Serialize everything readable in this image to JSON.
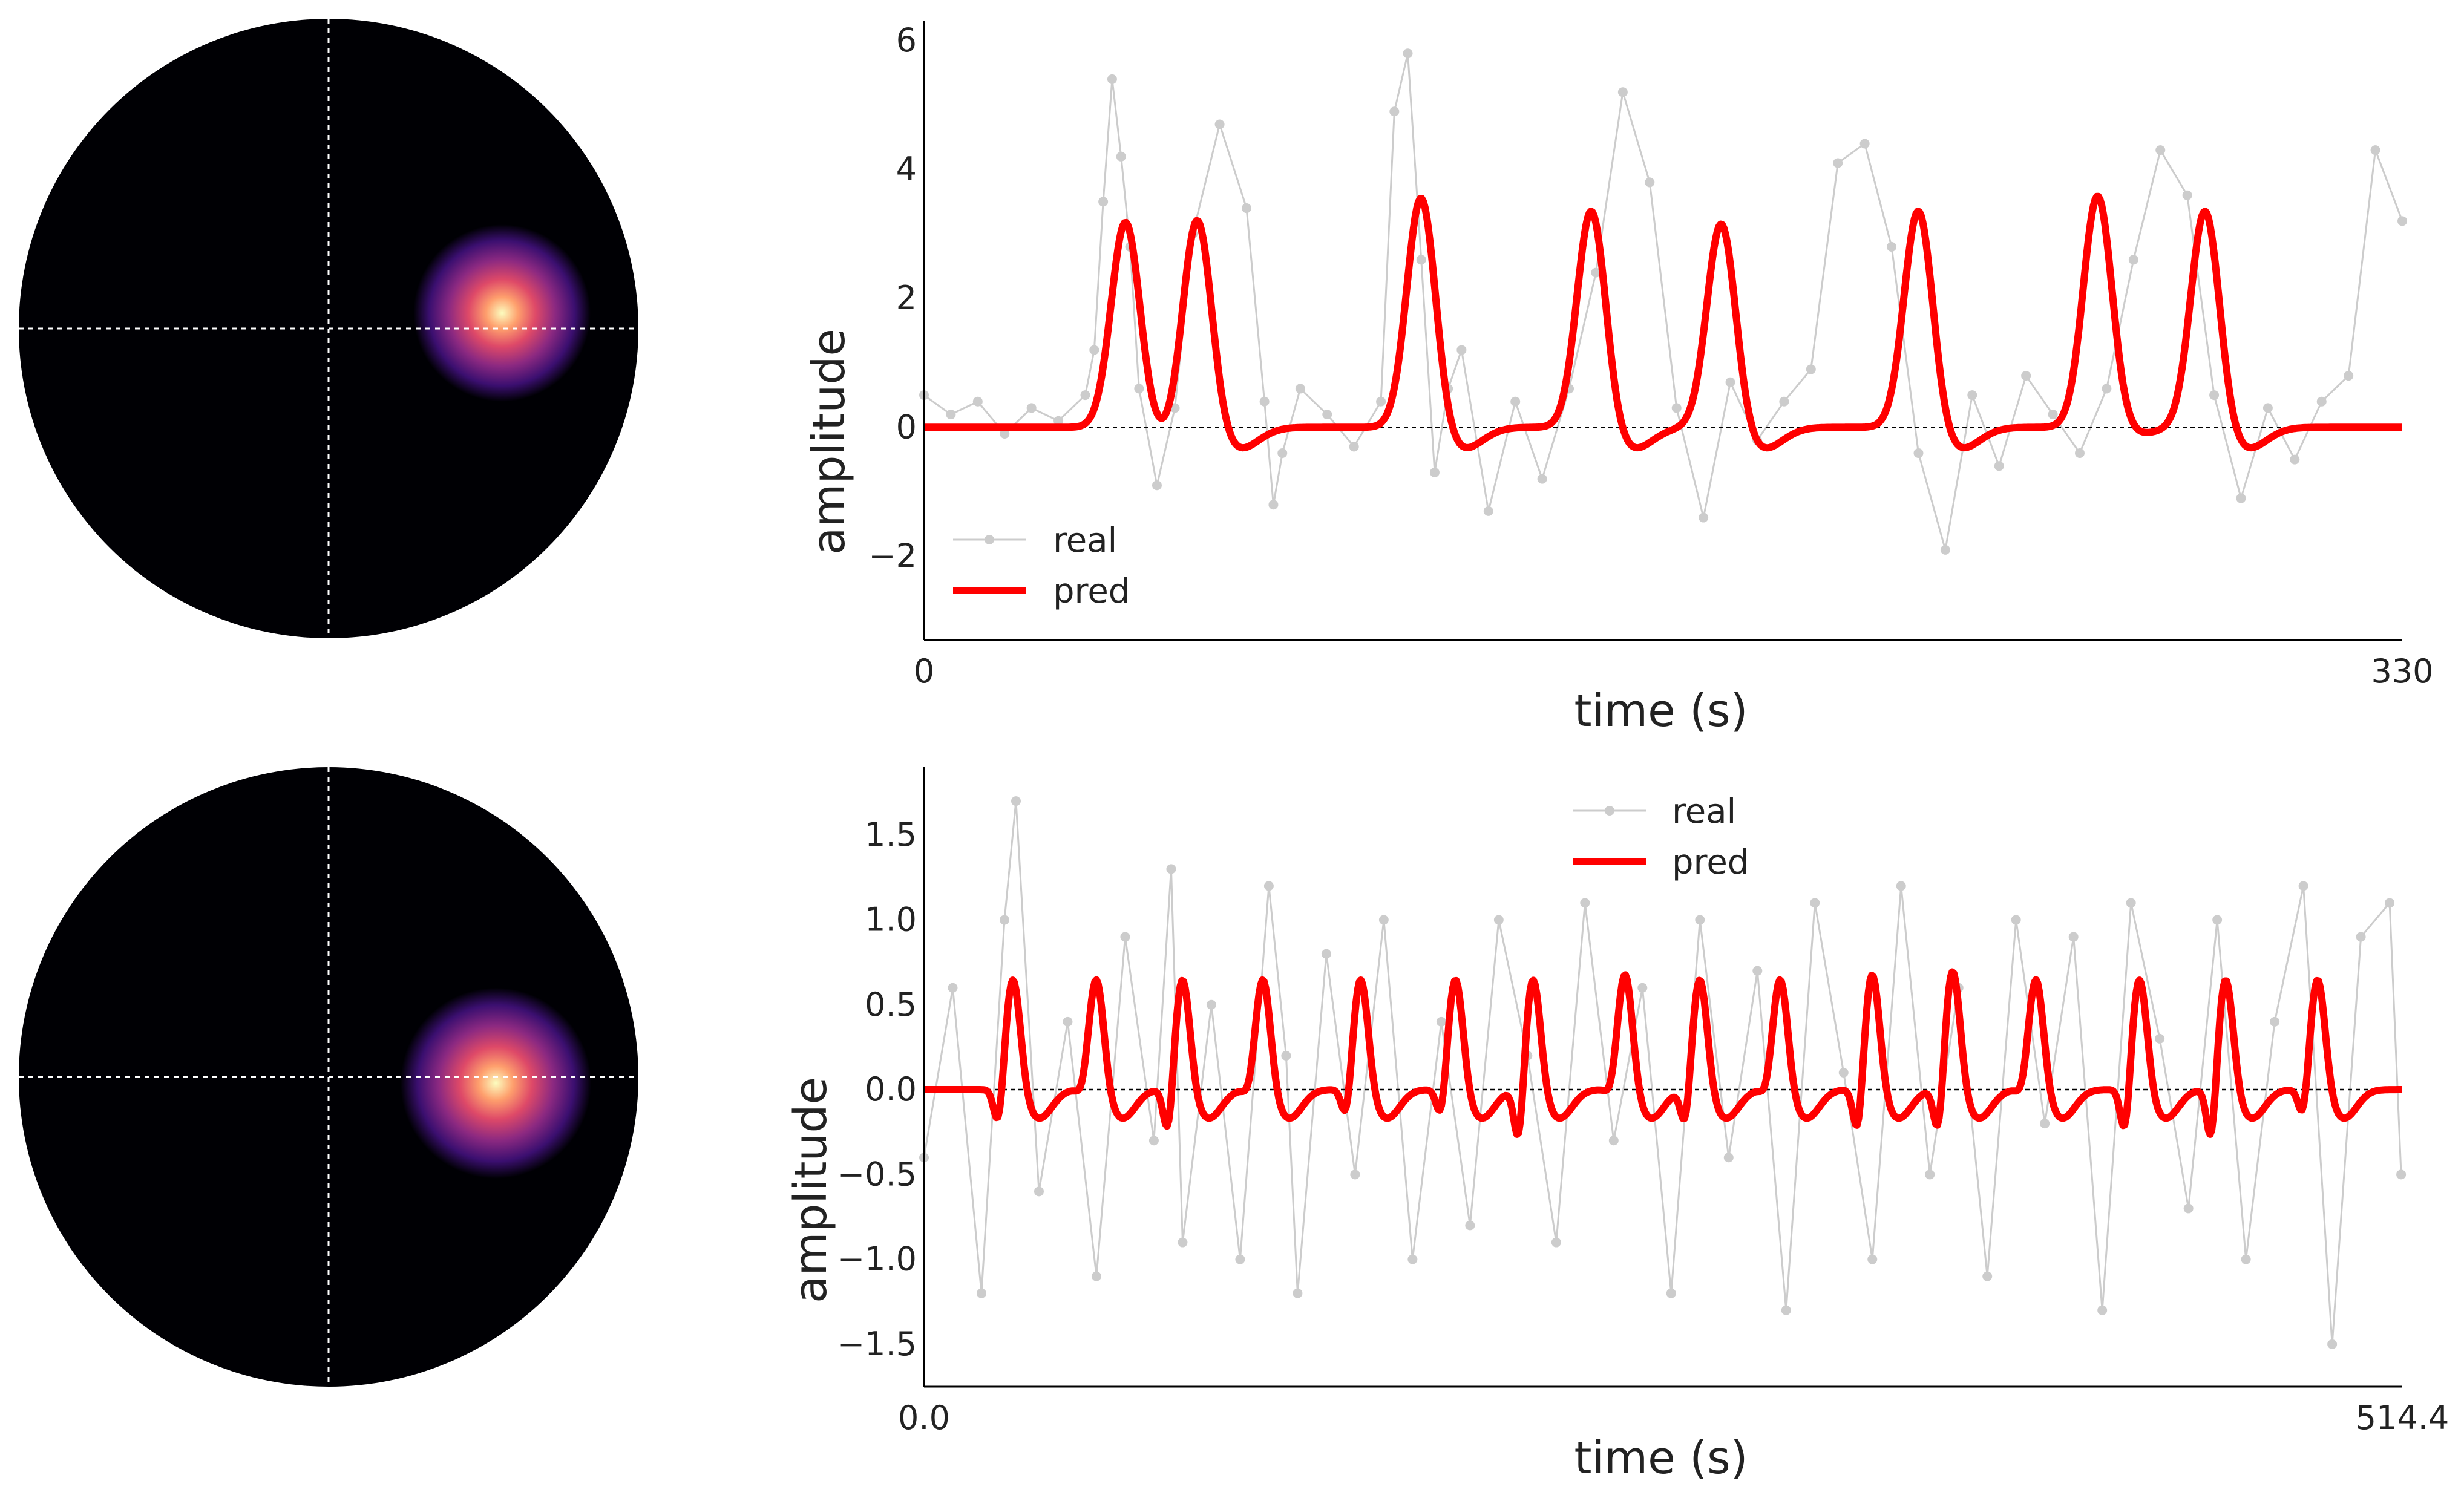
{
  "chart_data": [
    {
      "type": "line",
      "title": "",
      "xlabel": "time (s)",
      "ylabel": "amplitude",
      "xlim": [
        0,
        330
      ],
      "ylim": [
        -3.3,
        6.3
      ],
      "x_ticks": [
        0,
        330
      ],
      "x_tick_labels": [
        "0",
        "330"
      ],
      "y_ticks": [
        -2,
        0,
        2,
        4,
        6
      ],
      "y_tick_labels": [
        "−2",
        "0",
        "2",
        "4",
        "6"
      ],
      "baseline": 0,
      "legend": {
        "placement": "lower-left",
        "entries": [
          "real",
          "pred"
        ]
      },
      "grid": false,
      "series": [
        {
          "name": "real",
          "color": "#cccccc",
          "marker": "circle",
          "x": [
            0,
            6,
            12,
            18,
            24,
            30,
            36,
            38,
            40,
            42,
            44,
            46,
            48,
            52,
            56,
            60,
            66,
            72,
            76,
            78,
            80,
            84,
            90,
            96,
            102,
            105,
            108,
            111,
            114,
            117,
            120,
            126,
            132,
            138,
            144,
            150,
            156,
            162,
            168,
            174,
            180,
            186,
            192,
            198,
            204,
            210,
            216,
            222,
            228,
            234,
            240,
            246,
            252,
            258,
            264,
            270,
            276,
            282,
            288,
            294,
            300,
            306,
            312,
            318,
            324,
            330
          ],
          "values": [
            0.5,
            0.2,
            0.4,
            -0.1,
            0.3,
            0.1,
            0.5,
            1.2,
            3.5,
            5.4,
            4.2,
            2.8,
            0.6,
            -0.9,
            0.3,
            3.0,
            4.7,
            3.4,
            0.4,
            -1.2,
            -0.4,
            0.6,
            0.2,
            -0.3,
            0.4,
            4.9,
            5.8,
            2.6,
            -0.7,
            0.6,
            1.2,
            -1.3,
            0.4,
            -0.8,
            0.6,
            2.4,
            5.2,
            3.8,
            0.3,
            -1.4,
            0.7,
            -0.2,
            0.4,
            0.9,
            4.1,
            4.4,
            2.8,
            -0.4,
            -1.9,
            0.5,
            -0.6,
            0.8,
            0.2,
            -0.4,
            0.6,
            2.6,
            4.3,
            3.6,
            0.5,
            -1.1,
            0.3,
            -0.5,
            0.4,
            0.8,
            4.3,
            3.2
          ]
        },
        {
          "name": "pred",
          "color": "#ff0000",
          "peaks": [
            {
              "t": 45,
              "amp": 3.2,
              "dip": -0.15
            },
            {
              "t": 61,
              "amp": 3.3,
              "dip": -0.35
            },
            {
              "t": 111,
              "amp": 3.6,
              "dip": -0.35
            },
            {
              "t": 149,
              "amp": 3.4,
              "dip": -0.35
            },
            {
              "t": 178,
              "amp": 3.2,
              "dip": -0.35
            },
            {
              "t": 222,
              "amp": 3.4,
              "dip": -0.35
            },
            {
              "t": 262,
              "amp": 3.6,
              "dip": -0.1
            },
            {
              "t": 286,
              "amp": 3.4,
              "dip": -0.35
            }
          ],
          "peak_width": 3.2,
          "dip_offset": 9,
          "dip_width": 4.5
        }
      ]
    },
    {
      "type": "line",
      "title": "",
      "xlabel": "time (s)",
      "ylabel": "amplitude",
      "xlim": [
        0,
        514.4
      ],
      "ylim": [
        -1.75,
        1.9
      ],
      "x_ticks": [
        0,
        514.4
      ],
      "x_tick_labels": [
        "0.0",
        "514.4"
      ],
      "y_ticks": [
        -1.5,
        -1.0,
        -0.5,
        0.0,
        0.5,
        1.0,
        1.5
      ],
      "y_tick_labels": [
        "−1.5",
        "−1.0",
        "−0.5",
        "0.0",
        "0.5",
        "1.0",
        "1.5"
      ],
      "baseline": 0,
      "legend": {
        "placement": "upper-center",
        "entries": [
          "real",
          "pred"
        ]
      },
      "grid": false,
      "series": [
        {
          "name": "real",
          "color": "#cccccc",
          "marker": "circle",
          "x": [
            0,
            10,
            20,
            28,
            32,
            40,
            50,
            60,
            70,
            80,
            86,
            90,
            100,
            110,
            120,
            126,
            130,
            140,
            150,
            160,
            170,
            180,
            190,
            200,
            210,
            220,
            230,
            240,
            250,
            260,
            270,
            280,
            290,
            300,
            310,
            320,
            330,
            340,
            350,
            360,
            370,
            380,
            390,
            400,
            410,
            420,
            430,
            440,
            450,
            460,
            470,
            480,
            490,
            500,
            510,
            514
          ],
          "values": [
            -0.4,
            0.6,
            -1.2,
            1.0,
            1.7,
            -0.6,
            0.4,
            -1.1,
            0.9,
            -0.3,
            1.3,
            -0.9,
            0.5,
            -1.0,
            1.2,
            0.2,
            -1.2,
            0.8,
            -0.5,
            1.0,
            -1.0,
            0.4,
            -0.8,
            1.0,
            0.2,
            -0.9,
            1.1,
            -0.3,
            0.6,
            -1.2,
            1.0,
            -0.4,
            0.7,
            -1.3,
            1.1,
            0.1,
            -1.0,
            1.2,
            -0.5,
            0.6,
            -1.1,
            1.0,
            -0.2,
            0.9,
            -1.3,
            1.1,
            0.3,
            -0.7,
            1.0,
            -1.0,
            0.4,
            1.2,
            -1.5,
            0.9,
            1.1,
            -0.5
          ]
        },
        {
          "name": "pred",
          "color": "#ff0000",
          "peaks": [
            {
              "t": 31,
              "amp": 0.67,
              "pre": -0.25
            },
            {
              "t": 60,
              "amp": 0.67,
              "pre": -0.05
            },
            {
              "t": 90,
              "amp": 0.67,
              "pre": -0.3
            },
            {
              "t": 118,
              "amp": 0.67,
              "pre": -0.05
            },
            {
              "t": 152,
              "amp": 0.67,
              "pre": -0.2
            },
            {
              "t": 185,
              "amp": 0.67,
              "pre": -0.2
            },
            {
              "t": 212,
              "amp": 0.67,
              "pre": -0.35
            },
            {
              "t": 244,
              "amp": 0.7,
              "pre": -0.05
            },
            {
              "t": 270,
              "amp": 0.67,
              "pre": -0.25
            },
            {
              "t": 298,
              "amp": 0.67,
              "pre": -0.05
            },
            {
              "t": 330,
              "amp": 0.7,
              "pre": -0.3
            },
            {
              "t": 358,
              "amp": 0.72,
              "pre": -0.3
            },
            {
              "t": 387,
              "amp": 0.67,
              "pre": -0.05
            },
            {
              "t": 423,
              "amp": 0.67,
              "pre": -0.3
            },
            {
              "t": 453,
              "amp": 0.67,
              "pre": -0.35
            },
            {
              "t": 485,
              "amp": 0.67,
              "pre": -0.2
            }
          ],
          "peak_width": 2.6,
          "pre_offset": 5,
          "pre_width": 1.6,
          "dip_offset": 9,
          "dip_width": 4.5,
          "dip": -0.17
        }
      ]
    }
  ],
  "heatmaps": [
    {
      "background": "#000004",
      "crosshair_color": "#ffffff",
      "blob_center": [
        0.56,
        0.05
      ],
      "blob_sigma": 0.13,
      "colormap": [
        "#000004",
        "#3b0f70",
        "#8c2981",
        "#de4968",
        "#fe9f6d",
        "#fcfdbf"
      ]
    },
    {
      "background": "#000004",
      "crosshair_color": "#ffffff",
      "blob_center": [
        0.54,
        -0.02
      ],
      "blob_sigma": 0.14,
      "colormap": [
        "#000004",
        "#3b0f70",
        "#8c2981",
        "#de4968",
        "#fe9f6d",
        "#fcfdbf"
      ]
    }
  ]
}
